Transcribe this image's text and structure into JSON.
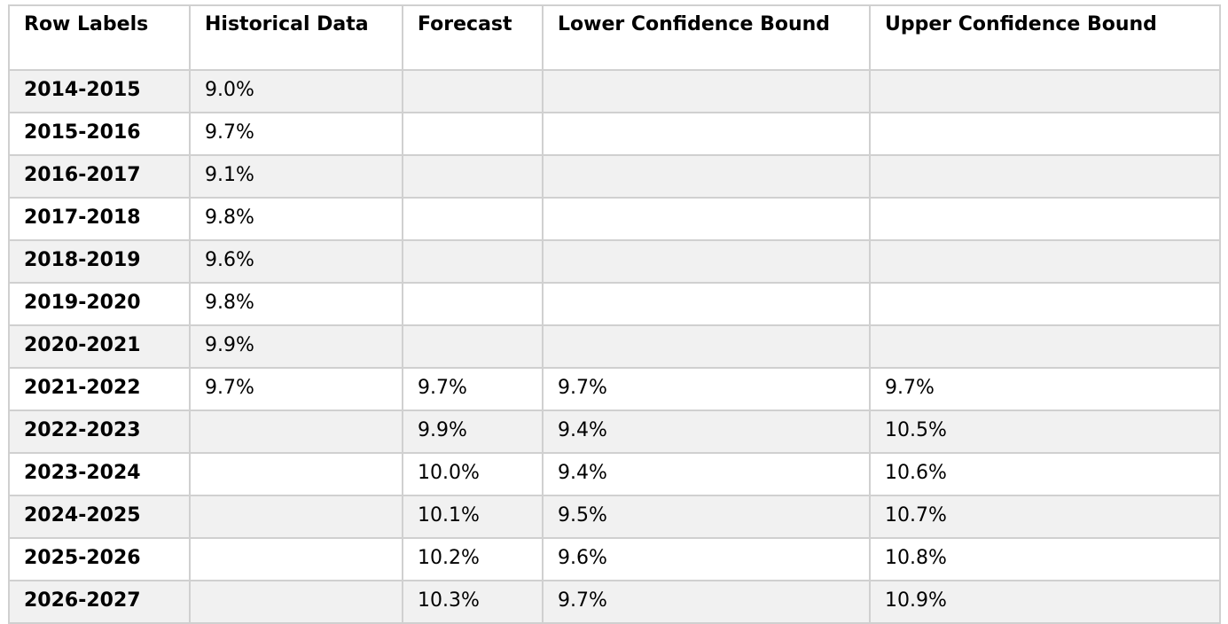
{
  "table": {
    "headers": [
      "Row Labels",
      "Historical Data",
      "Forecast",
      "Lower Confidence Bound",
      "Upper Confidence Bound"
    ],
    "rows": [
      [
        "2014-2015",
        "9.0%",
        "",
        "",
        ""
      ],
      [
        "2015-2016",
        "9.7%",
        "",
        "",
        ""
      ],
      [
        "2016-2017",
        "9.1%",
        "",
        "",
        ""
      ],
      [
        "2017-2018",
        "9.8%",
        "",
        "",
        ""
      ],
      [
        "2018-2019",
        "9.6%",
        "",
        "",
        ""
      ],
      [
        "2019-2020",
        "9.8%",
        "",
        "",
        ""
      ],
      [
        "2020-2021",
        "9.9%",
        "",
        "",
        ""
      ],
      [
        "2021-2022",
        "9.7%",
        "9.7%",
        "9.7%",
        "9.7%"
      ],
      [
        "2022-2023",
        "",
        "9.9%",
        "9.4%",
        "10.5%"
      ],
      [
        "2023-2024",
        "",
        "10.0%",
        "9.4%",
        "10.6%"
      ],
      [
        "2024-2025",
        "",
        "10.1%",
        "9.5%",
        "10.7%"
      ],
      [
        "2025-2026",
        "",
        "10.2%",
        "9.6%",
        "10.8%"
      ],
      [
        "2026-2027",
        "",
        "10.3%",
        "9.7%",
        "10.9%"
      ]
    ]
  }
}
